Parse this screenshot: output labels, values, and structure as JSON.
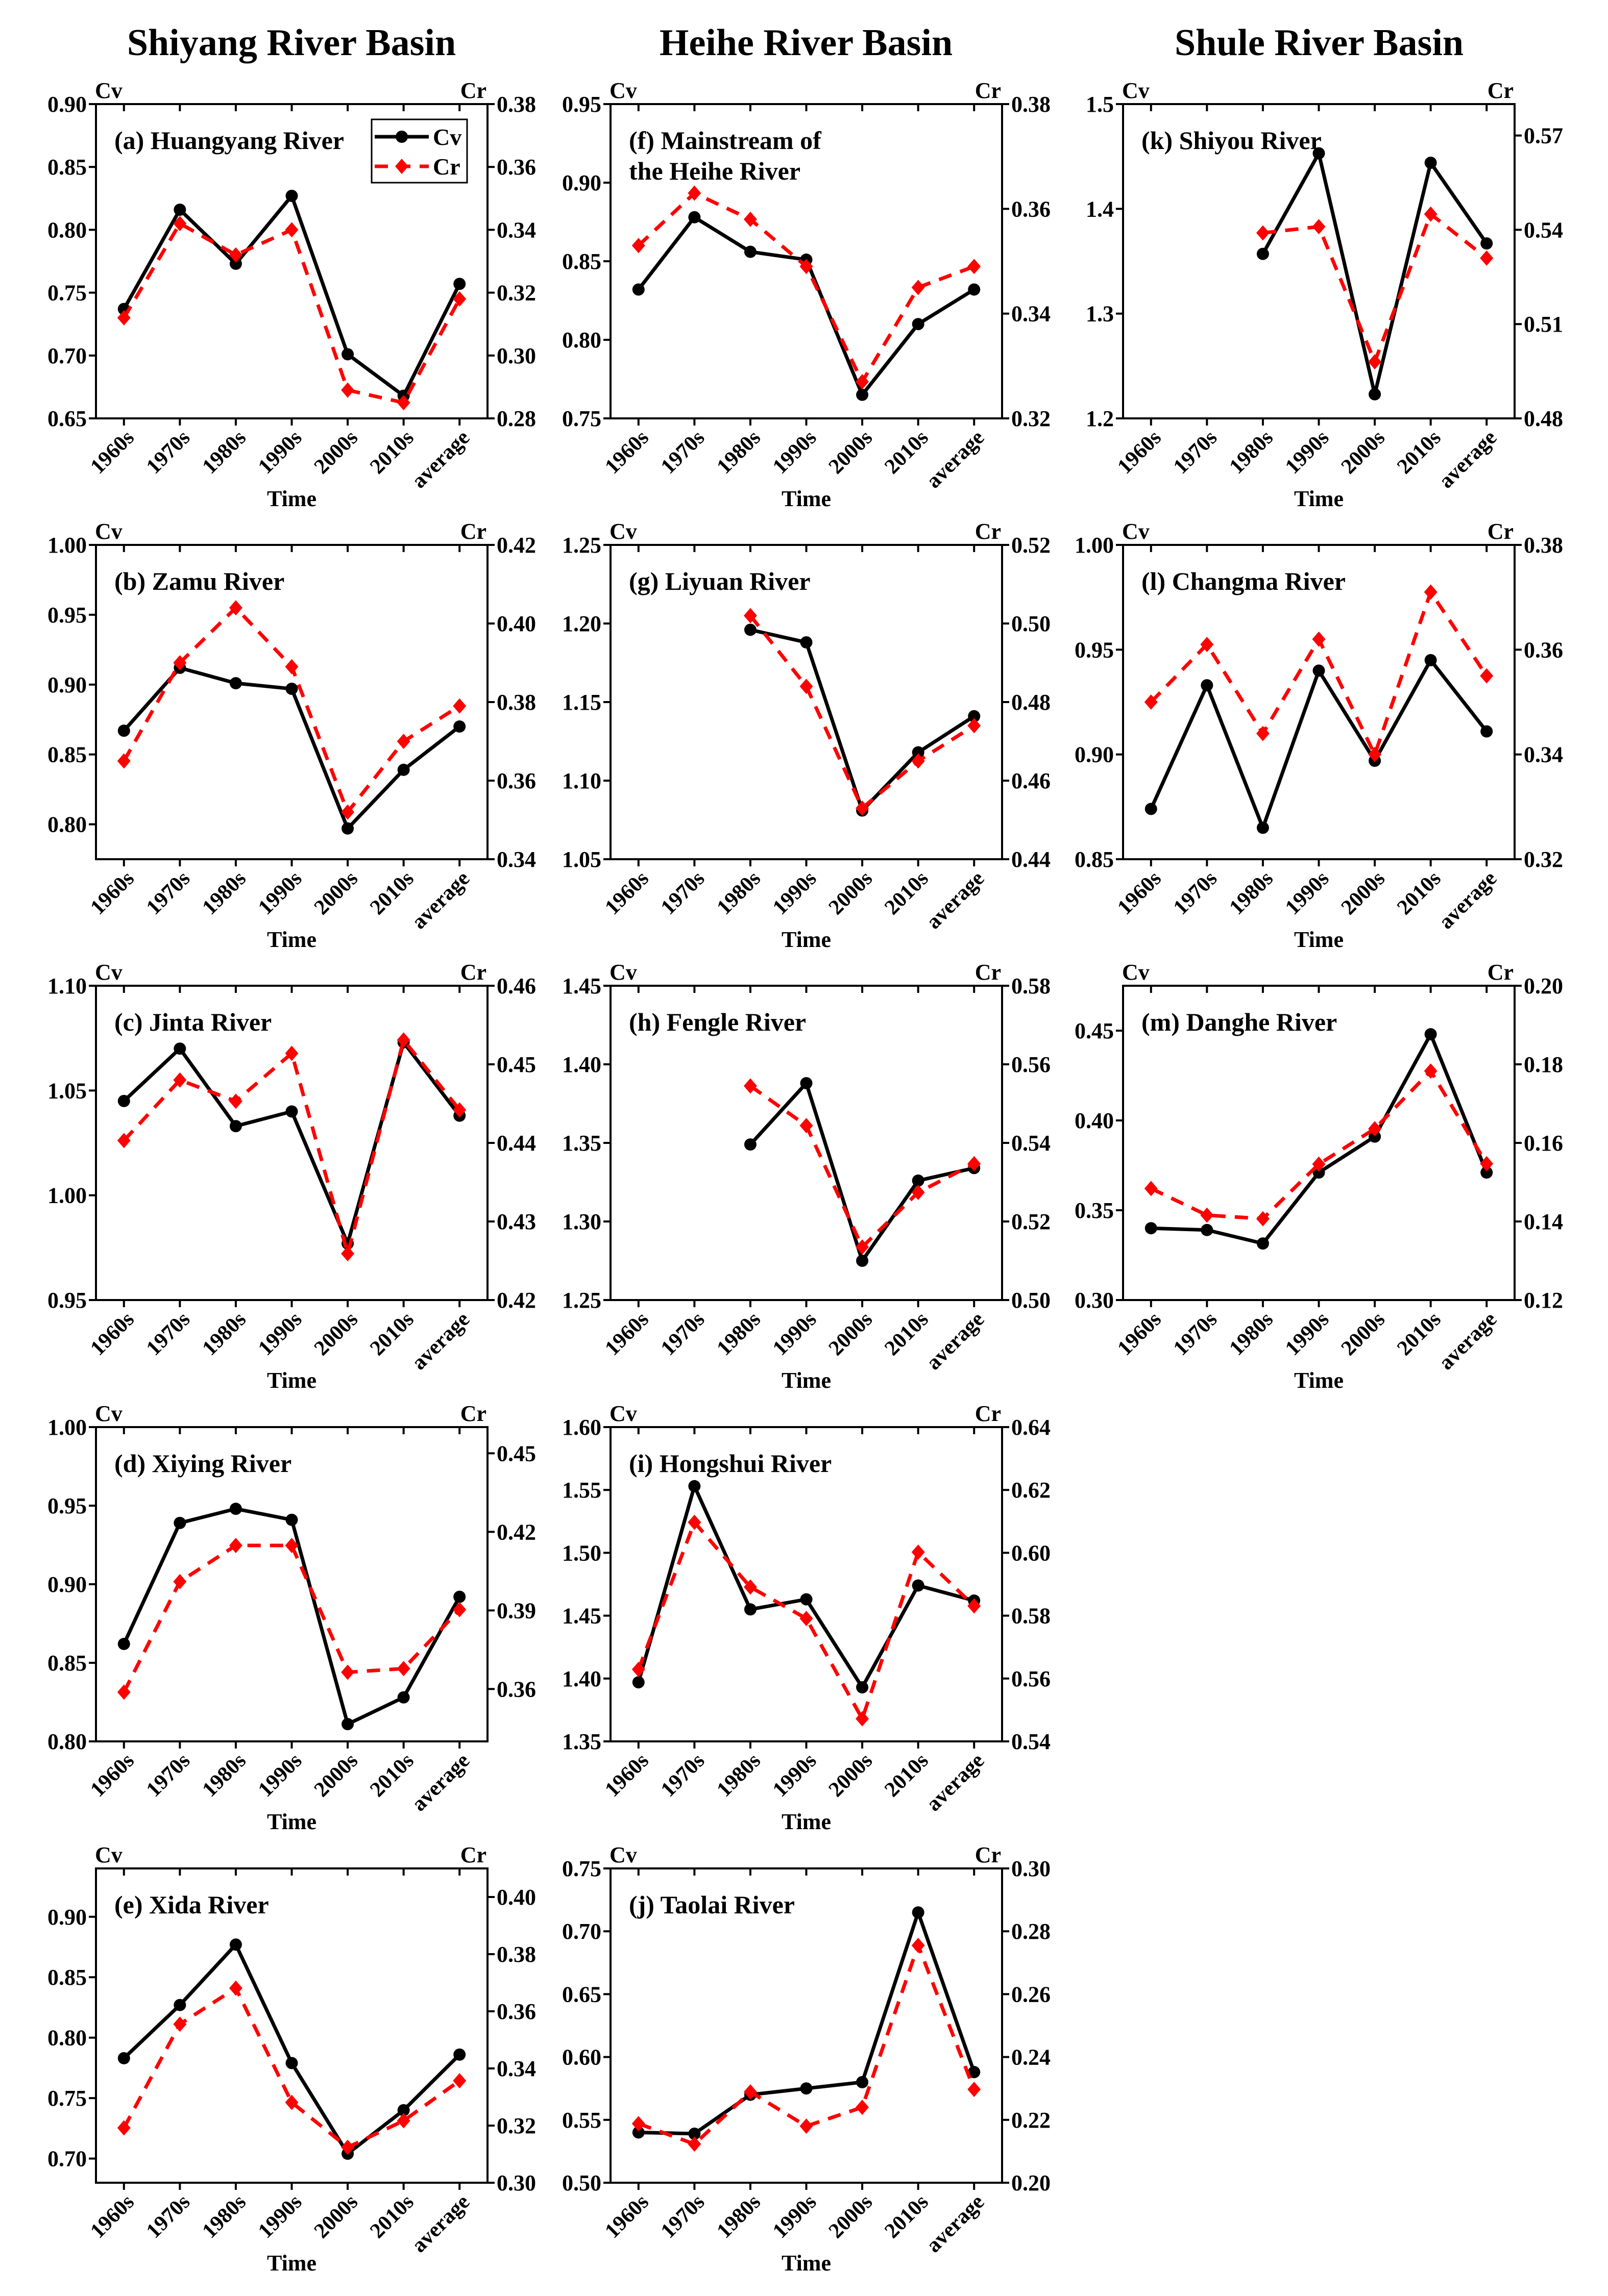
{
  "basin_titles": [
    "Shiyang River Basin",
    "Heihe River Basin",
    "Shule River Basin"
  ],
  "colors": {
    "cv": "#000000",
    "cr": "#ff0000"
  },
  "legend": {
    "cv": "Cv",
    "cr": "Cr"
  },
  "chart_data": [
    {
      "type": "line",
      "column": 0,
      "row": 0,
      "title": [
        "(a) Huangyang River"
      ],
      "xlabel": "Time",
      "ylabel_left": "Cv",
      "ylabel_right": "Cr",
      "categories": [
        "1960s",
        "1970s",
        "1980s",
        "1990s",
        "2000s",
        "2010s",
        "average"
      ],
      "cv_range": [
        0.65,
        0.9
      ],
      "cv_ticks": [
        "0.65",
        "0.70",
        "0.75",
        "0.80",
        "0.85",
        "0.90"
      ],
      "cr_range": [
        0.28,
        0.38
      ],
      "cr_ticks": [
        "0.28",
        "0.30",
        "0.32",
        "0.34",
        "0.36",
        "0.38"
      ],
      "series": [
        {
          "name": "Cv",
          "axis": "left",
          "values": [
            0.737,
            0.816,
            0.773,
            0.827,
            0.701,
            0.668,
            0.757
          ]
        },
        {
          "name": "Cr",
          "axis": "right",
          "values": [
            0.312,
            0.342,
            0.332,
            0.34,
            0.289,
            0.285,
            0.318
          ]
        }
      ],
      "legend": "top-right"
    },
    {
      "type": "line",
      "column": 0,
      "row": 1,
      "title": [
        "(b) Zamu River"
      ],
      "xlabel": "Time",
      "ylabel_left": "Cv",
      "ylabel_right": "Cr",
      "categories": [
        "1960s",
        "1970s",
        "1980s",
        "1990s",
        "2000s",
        "2010s",
        "average"
      ],
      "cv_range": [
        0.775,
        1.0
      ],
      "cv_ticks": [
        "0.80",
        "0.85",
        "0.90",
        "0.95",
        "1.00"
      ],
      "cr_range": [
        0.34,
        0.42
      ],
      "cr_ticks": [
        "0.34",
        "0.36",
        "0.38",
        "0.40",
        "0.42"
      ],
      "series": [
        {
          "name": "Cv",
          "axis": "left",
          "values": [
            0.867,
            0.912,
            0.901,
            0.897,
            0.797,
            0.839,
            0.87
          ]
        },
        {
          "name": "Cr",
          "axis": "right",
          "values": [
            0.365,
            0.39,
            0.404,
            0.389,
            0.352,
            0.37,
            0.379
          ]
        }
      ]
    },
    {
      "type": "line",
      "column": 0,
      "row": 2,
      "title": [
        "(c) Jinta River"
      ],
      "xlabel": "Time",
      "ylabel_left": "Cv",
      "ylabel_right": "Cr",
      "categories": [
        "1960s",
        "1970s",
        "1980s",
        "1990s",
        "2000s",
        "2010s",
        "average"
      ],
      "cv_range": [
        0.95,
        1.1
      ],
      "cv_ticks": [
        "0.95",
        "1.00",
        "1.05",
        "1.10"
      ],
      "cr_range": [
        0.42,
        0.46
      ],
      "cr_ticks": [
        "0.42",
        "0.43",
        "0.44",
        "0.45",
        "0.46"
      ],
      "series": [
        {
          "name": "Cv",
          "axis": "left",
          "values": [
            1.045,
            1.07,
            1.033,
            1.04,
            0.977,
            1.073,
            1.038
          ]
        },
        {
          "name": "Cr",
          "axis": "right",
          "values": [
            0.4403,
            0.448,
            0.4453,
            0.4514,
            0.4259,
            0.4531,
            0.4442
          ]
        }
      ]
    },
    {
      "type": "line",
      "column": 0,
      "row": 3,
      "title": [
        "(d) Xiying River"
      ],
      "xlabel": "Time",
      "ylabel_left": "Cv",
      "ylabel_right": "Cr",
      "categories": [
        "1960s",
        "1970s",
        "1980s",
        "1990s",
        "2000s",
        "2010s",
        "average"
      ],
      "cv_range": [
        0.8,
        1.0
      ],
      "cv_ticks": [
        "0.80",
        "0.85",
        "0.90",
        "0.95",
        "1.00"
      ],
      "cr_range": [
        0.34,
        0.46
      ],
      "cr_ticks": [
        "0.36",
        "0.39",
        "0.42",
        "0.45"
      ],
      "series": [
        {
          "name": "Cv",
          "axis": "left",
          "values": [
            0.862,
            0.939,
            0.948,
            0.941,
            0.811,
            0.828,
            0.892
          ]
        },
        {
          "name": "Cr",
          "axis": "right",
          "values": [
            0.3588,
            0.401,
            0.4148,
            0.4148,
            0.3664,
            0.3678,
            0.3903
          ]
        }
      ]
    },
    {
      "type": "line",
      "column": 0,
      "row": 4,
      "title": [
        "(e) Xida River"
      ],
      "xlabel": "Time",
      "ylabel_left": "Cv",
      "ylabel_right": "Cr",
      "categories": [
        "1960s",
        "1970s",
        "1980s",
        "1990s",
        "2000s",
        "2010s",
        "average"
      ],
      "cv_range": [
        0.68,
        0.94
      ],
      "cv_ticks": [
        "0.70",
        "0.75",
        "0.80",
        "0.85",
        "0.90"
      ],
      "cr_range": [
        0.3,
        0.41
      ],
      "cr_ticks": [
        "0.30",
        "0.32",
        "0.34",
        "0.36",
        "0.38",
        "0.40"
      ],
      "series": [
        {
          "name": "Cv",
          "axis": "left",
          "values": [
            0.783,
            0.827,
            0.877,
            0.779,
            0.704,
            0.74,
            0.786
          ]
        },
        {
          "name": "Cr",
          "axis": "right",
          "values": [
            0.3192,
            0.3555,
            0.3681,
            0.3281,
            0.3124,
            0.3217,
            0.3357
          ]
        }
      ]
    },
    {
      "type": "line",
      "column": 1,
      "row": 0,
      "title": [
        "(f) Mainstream of",
        "the Heihe River"
      ],
      "xlabel": "Time",
      "ylabel_left": "Cv",
      "ylabel_right": "Cr",
      "categories": [
        "1960s",
        "1970s",
        "1980s",
        "1990s",
        "2000s",
        "2010s",
        "average"
      ],
      "cv_range": [
        0.75,
        0.95
      ],
      "cv_ticks": [
        "0.75",
        "0.80",
        "0.85",
        "0.90",
        "0.95"
      ],
      "cr_range": [
        0.32,
        0.38
      ],
      "cr_ticks": [
        "0.32",
        "0.34",
        "0.36",
        "0.38"
      ],
      "series": [
        {
          "name": "Cv",
          "axis": "left",
          "values": [
            0.832,
            0.878,
            0.856,
            0.851,
            0.765,
            0.81,
            0.832
          ]
        },
        {
          "name": "Cr",
          "axis": "right",
          "values": [
            0.353,
            0.363,
            0.358,
            0.349,
            0.327,
            0.345,
            0.349
          ]
        }
      ]
    },
    {
      "type": "line",
      "column": 1,
      "row": 1,
      "title": [
        "(g) Liyuan River"
      ],
      "xlabel": "Time",
      "ylabel_left": "Cv",
      "ylabel_right": "Cr",
      "categories": [
        "1960s",
        "1970s",
        "1980s",
        "1990s",
        "2000s",
        "2010s",
        "average"
      ],
      "cv_range": [
        1.05,
        1.25
      ],
      "cv_ticks": [
        "1.05",
        "1.10",
        "1.15",
        "1.20",
        "1.25"
      ],
      "cr_range": [
        0.44,
        0.52
      ],
      "cr_ticks": [
        "0.44",
        "0.46",
        "0.48",
        "0.50",
        "0.52"
      ],
      "series": [
        {
          "name": "Cv",
          "axis": "left",
          "values": [
            null,
            null,
            1.196,
            1.188,
            1.081,
            1.118,
            1.141
          ]
        },
        {
          "name": "Cr",
          "axis": "right",
          "values": [
            null,
            null,
            0.502,
            0.484,
            0.453,
            0.465,
            0.474
          ]
        }
      ]
    },
    {
      "type": "line",
      "column": 1,
      "row": 2,
      "title": [
        "(h) Fengle River"
      ],
      "xlabel": "Time",
      "ylabel_left": "Cv",
      "ylabel_right": "Cr",
      "categories": [
        "1960s",
        "1970s",
        "1980s",
        "1990s",
        "2000s",
        "2010s",
        "average"
      ],
      "cv_range": [
        1.25,
        1.45
      ],
      "cv_ticks": [
        "1.25",
        "1.30",
        "1.35",
        "1.40",
        "1.45"
      ],
      "cr_range": [
        0.5,
        0.58
      ],
      "cr_ticks": [
        "0.50",
        "0.52",
        "0.54",
        "0.56",
        "0.58"
      ],
      "series": [
        {
          "name": "Cv",
          "axis": "left",
          "values": [
            null,
            null,
            1.349,
            1.388,
            1.275,
            1.326,
            1.334
          ]
        },
        {
          "name": "Cr",
          "axis": "right",
          "values": [
            null,
            null,
            0.5545,
            0.5444,
            0.5135,
            0.5274,
            0.5347
          ]
        }
      ]
    },
    {
      "type": "line",
      "column": 1,
      "row": 3,
      "title": [
        "(i) Hongshui River"
      ],
      "xlabel": "Time",
      "ylabel_left": "Cv",
      "ylabel_right": "Cr",
      "categories": [
        "1960s",
        "1970s",
        "1980s",
        "1990s",
        "2000s",
        "2010s",
        "average"
      ],
      "cv_range": [
        1.35,
        1.6
      ],
      "cv_ticks": [
        "1.35",
        "1.40",
        "1.45",
        "1.50",
        "1.55",
        "1.60"
      ],
      "cr_range": [
        0.54,
        0.64
      ],
      "cr_ticks": [
        "0.54",
        "0.56",
        "0.58",
        "0.60",
        "0.62",
        "0.64"
      ],
      "series": [
        {
          "name": "Cv",
          "axis": "left",
          "values": [
            1.397,
            1.553,
            1.455,
            1.463,
            1.393,
            1.474,
            1.462
          ]
        },
        {
          "name": "Cr",
          "axis": "right",
          "values": [
            0.5629,
            0.6097,
            0.5891,
            0.5791,
            0.5472,
            0.6002,
            0.5831
          ]
        }
      ]
    },
    {
      "type": "line",
      "column": 1,
      "row": 4,
      "title": [
        "(j) Taolai River"
      ],
      "xlabel": "Time",
      "ylabel_left": "Cv",
      "ylabel_right": "Cr",
      "categories": [
        "1960s",
        "1970s",
        "1980s",
        "1990s",
        "2000s",
        "2010s",
        "average"
      ],
      "cv_range": [
        0.5,
        0.75
      ],
      "cv_ticks": [
        "0.50",
        "0.55",
        "0.60",
        "0.65",
        "0.70",
        "0.75"
      ],
      "cr_range": [
        0.2,
        0.3
      ],
      "cr_ticks": [
        "0.20",
        "0.22",
        "0.24",
        "0.26",
        "0.28",
        "0.30"
      ],
      "series": [
        {
          "name": "Cv",
          "axis": "left",
          "values": [
            0.54,
            0.539,
            0.57,
            0.575,
            0.58,
            0.715,
            0.588
          ]
        },
        {
          "name": "Cr",
          "axis": "right",
          "values": [
            0.2188,
            0.2123,
            0.2289,
            0.218,
            0.224,
            0.2755,
            0.2297
          ]
        }
      ]
    },
    {
      "type": "line",
      "column": 2,
      "row": 0,
      "title": [
        "(k) Shiyou River"
      ],
      "xlabel": "Time",
      "ylabel_left": "Cv",
      "ylabel_right": "Cr",
      "categories": [
        "1960s",
        "1970s",
        "1980s",
        "1990s",
        "2000s",
        "2010s",
        "average"
      ],
      "cv_range": [
        1.2,
        1.5
      ],
      "cv_ticks": [
        "1.2",
        "1.3",
        "1.4",
        "1.5"
      ],
      "cr_range": [
        0.48,
        0.58
      ],
      "cr_ticks": [
        "0.48",
        "0.51",
        "0.54",
        "0.57"
      ],
      "series": [
        {
          "name": "Cv",
          "axis": "left",
          "values": [
            null,
            null,
            1.357,
            1.453,
            1.223,
            1.444,
            1.367
          ]
        },
        {
          "name": "Cr",
          "axis": "right",
          "values": [
            null,
            null,
            0.539,
            0.541,
            0.498,
            0.545,
            0.531
          ]
        }
      ]
    },
    {
      "type": "line",
      "column": 2,
      "row": 1,
      "title": [
        "(l) Changma River"
      ],
      "xlabel": "Time",
      "ylabel_left": "Cv",
      "ylabel_right": "Cr",
      "categories": [
        "1960s",
        "1970s",
        "1980s",
        "1990s",
        "2000s",
        "2010s",
        "average"
      ],
      "cv_range": [
        0.85,
        1.0
      ],
      "cv_ticks": [
        "0.85",
        "0.90",
        "0.95",
        "1.00"
      ],
      "cr_range": [
        0.32,
        0.38
      ],
      "cr_ticks": [
        "0.32",
        "0.34",
        "0.36",
        "0.38"
      ],
      "series": [
        {
          "name": "Cv",
          "axis": "left",
          "values": [
            0.874,
            0.933,
            0.865,
            0.94,
            0.897,
            0.945,
            0.911
          ]
        },
        {
          "name": "Cr",
          "axis": "right",
          "values": [
            0.35,
            0.361,
            0.344,
            0.362,
            0.34,
            0.371,
            0.355
          ]
        }
      ]
    },
    {
      "type": "line",
      "column": 2,
      "row": 2,
      "title": [
        "(m) Danghe River"
      ],
      "xlabel": "Time",
      "ylabel_left": "Cv",
      "ylabel_right": "Cr",
      "categories": [
        "1960s",
        "1970s",
        "1980s",
        "1990s",
        "2000s",
        "2010s",
        "average"
      ],
      "cv_range": [
        0.3,
        0.475
      ],
      "cv_ticks": [
        "0.30",
        "0.35",
        "0.40",
        "0.45"
      ],
      "cr_range": [
        0.12,
        0.2
      ],
      "cr_ticks": [
        "0.12",
        "0.14",
        "0.16",
        "0.18",
        "0.20"
      ],
      "series": [
        {
          "name": "Cv",
          "axis": "left",
          "values": [
            0.34,
            0.339,
            0.3315,
            0.371,
            0.391,
            0.448,
            0.371
          ]
        },
        {
          "name": "Cr",
          "axis": "right",
          "values": [
            0.1484,
            0.1416,
            0.1407,
            0.1546,
            0.1636,
            0.1783,
            0.1547
          ]
        }
      ]
    }
  ]
}
